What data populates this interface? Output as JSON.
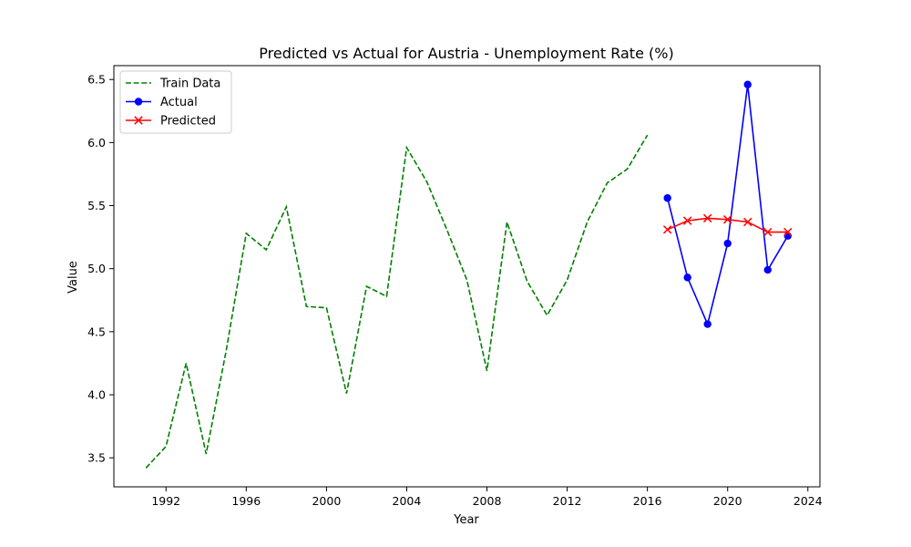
{
  "chart_data": {
    "type": "line",
    "title": "Predicted vs Actual for Austria - Unemployment Rate (%)",
    "xlabel": "Year",
    "ylabel": "Value",
    "xlim": [
      1989.4,
      2024.6
    ],
    "ylim": [
      3.27,
      6.61
    ],
    "xticks": [
      1992,
      1996,
      2000,
      2004,
      2008,
      2012,
      2016,
      2020,
      2024
    ],
    "yticks": [
      3.5,
      4.0,
      4.5,
      5.0,
      5.5,
      6.0,
      6.5
    ],
    "ytick_labels": [
      "3.5",
      "4.0",
      "4.5",
      "5.0",
      "5.5",
      "6.0",
      "6.5"
    ],
    "legend_position": "upper-left",
    "series": [
      {
        "name": "Train Data",
        "color": "#008000",
        "style": "dashed",
        "marker": "none",
        "x": [
          1991,
          1992,
          1993,
          1994,
          1995,
          1996,
          1997,
          1998,
          1999,
          2000,
          2001,
          2002,
          2003,
          2004,
          2005,
          2006,
          2007,
          2008,
          2009,
          2010,
          2011,
          2012,
          2013,
          2014,
          2015,
          2016
        ],
        "y": [
          3.42,
          3.59,
          4.25,
          3.53,
          4.35,
          5.28,
          5.15,
          5.49,
          4.7,
          4.69,
          4.01,
          4.86,
          4.78,
          5.96,
          5.69,
          5.31,
          4.91,
          4.19,
          5.37,
          4.9,
          4.63,
          4.91,
          5.37,
          5.68,
          5.79,
          6.06
        ]
      },
      {
        "name": "Actual",
        "color": "#0000ff",
        "style": "solid",
        "marker": "circle",
        "x": [
          2017,
          2018,
          2019,
          2020,
          2021,
          2022,
          2023
        ],
        "y": [
          5.56,
          4.93,
          4.56,
          5.2,
          6.46,
          4.99,
          5.26
        ]
      },
      {
        "name": "Predicted",
        "color": "#ff0000",
        "style": "solid",
        "marker": "x",
        "x": [
          2017,
          2018,
          2019,
          2020,
          2021,
          2022,
          2023
        ],
        "y": [
          5.31,
          5.38,
          5.4,
          5.39,
          5.37,
          5.29,
          5.29
        ]
      }
    ]
  }
}
